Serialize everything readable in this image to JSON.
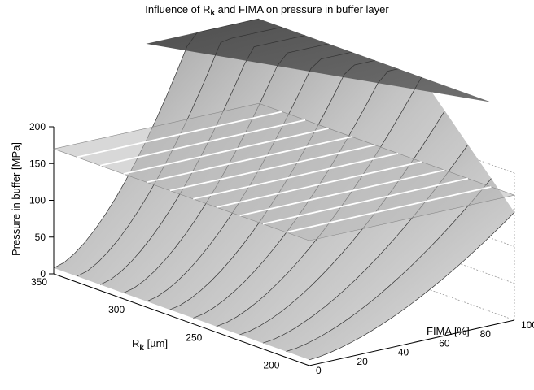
{
  "chart_data": {
    "type": "surface",
    "title": {
      "prefix": "Influence of R",
      "subscript": "k",
      "suffix": " and FIMA on pressure in buffer layer"
    },
    "zlabel": "Pressure in buffer [MPa]",
    "xlabel": {
      "main": "R",
      "subscript": "k",
      "unit": " [µm]"
    },
    "ylabel": "FIMA [%]",
    "x_ticks": [
      "350",
      "300",
      "250",
      "200"
    ],
    "y_ticks": [
      "0",
      "20",
      "40",
      "60",
      "80",
      "100"
    ],
    "z_ticks": [
      "0",
      "50",
      "100",
      "150",
      "200"
    ],
    "xlim": [
      185,
      350
    ],
    "ylim": [
      0,
      100
    ],
    "zlim": [
      0,
      200
    ],
    "surface_rk_values": [
      350,
      335,
      320,
      305,
      290,
      275,
      260,
      245,
      230,
      215,
      200,
      185
    ],
    "surface_description_values": {
      "pressure_cap_mpa": 285,
      "reference_plane_mpa": 170
    },
    "grid": true,
    "colors": {
      "surface_light": "#d6d6d6",
      "surface_dark": "#5a5a5a",
      "plane": "#bdbdbd",
      "plane_lines": "#ffffff",
      "grid": "#999999"
    }
  }
}
